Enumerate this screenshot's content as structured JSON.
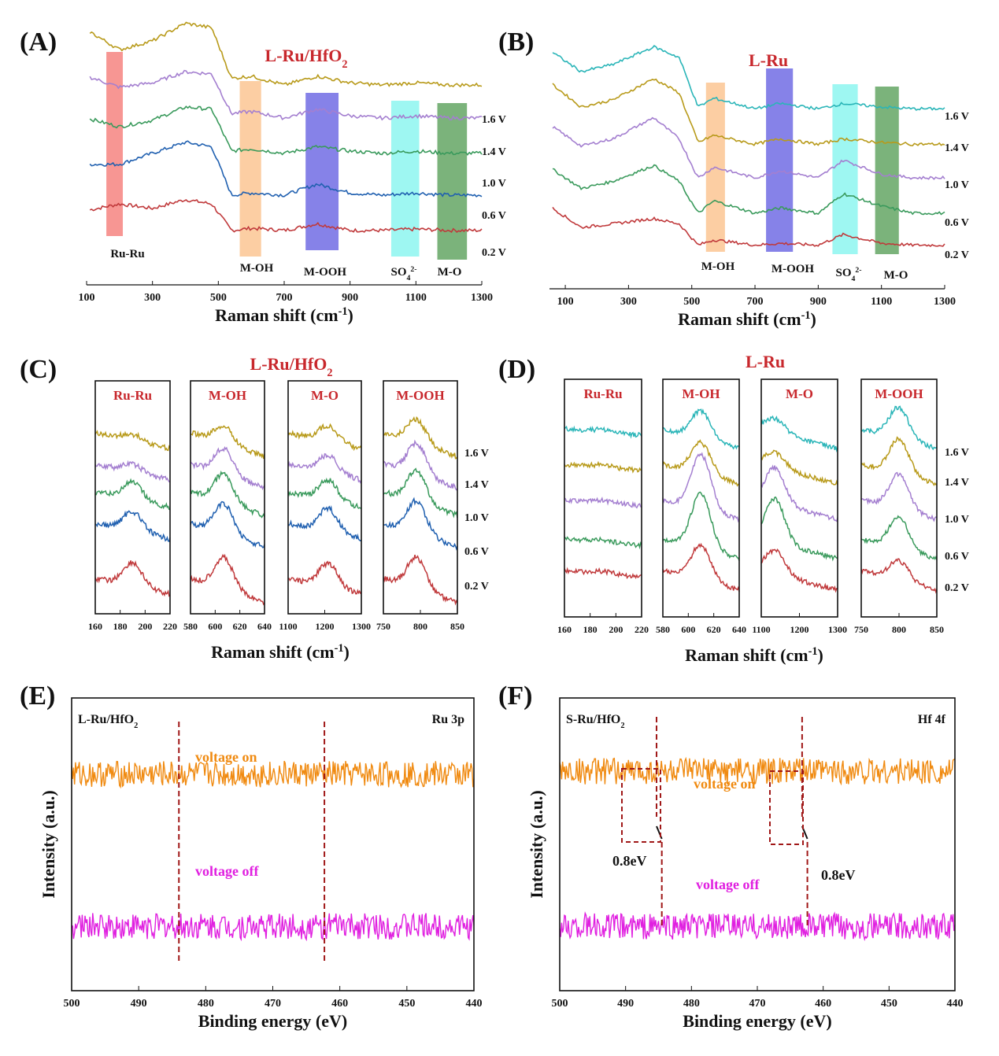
{
  "figure": {
    "colors": {
      "v0_2": "#c0393b",
      "v0_6": "#2060b0",
      "v1_0": "#3a9a5c",
      "v1_4": "#a47fd0",
      "v1_6": "#b89a1a",
      "v1_6_lru": "#2ab5b8",
      "label_red": "#c8282d",
      "xps_on": "#f08a10",
      "xps_off": "#e020e0",
      "dash_red": "#a01818"
    }
  },
  "chart_data": [
    {
      "panel": "(A)",
      "type": "line",
      "title": "L-Ru/HfO₂",
      "xlabel": "Raman shift (cm⁻¹)",
      "xlim": [
        100,
        1300
      ],
      "x_ticks": [
        "100",
        "300",
        "500",
        "700",
        "900",
        "1100",
        "1300"
      ],
      "series": [
        {
          "name": "0.2 V",
          "x": [
            100,
            200,
            300,
            400,
            480,
            540,
            600,
            700,
            800,
            900,
            1000,
            1100,
            1200,
            1300
          ],
          "y": [
            0.9,
            1.05,
            0.95,
            1.15,
            1.05,
            0.45,
            0.5,
            0.45,
            0.6,
            0.45,
            0.45,
            0.48,
            0.45,
            0.45
          ]
        },
        {
          "name": "0.6 V",
          "x": [
            100,
            200,
            300,
            400,
            480,
            540,
            600,
            700,
            800,
            900,
            1000,
            1100,
            1200,
            1300
          ],
          "y": [
            1.95,
            1.95,
            2.2,
            2.45,
            2.35,
            1.25,
            1.3,
            1.25,
            1.5,
            1.3,
            1.25,
            1.3,
            1.25,
            1.25
          ]
        },
        {
          "name": "1.0 V",
          "x": [
            100,
            200,
            300,
            400,
            480,
            540,
            600,
            700,
            800,
            900,
            1000,
            1100,
            1200,
            1300
          ],
          "y": [
            3.0,
            2.8,
            2.95,
            3.25,
            3.2,
            2.25,
            2.3,
            2.2,
            2.35,
            2.25,
            2.2,
            2.25,
            2.2,
            2.2
          ]
        },
        {
          "name": "1.4 V",
          "x": [
            100,
            200,
            300,
            400,
            480,
            540,
            600,
            700,
            800,
            900,
            1000,
            1100,
            1200,
            1300
          ],
          "y": [
            3.95,
            3.7,
            3.8,
            4.05,
            4.0,
            3.1,
            3.15,
            3.0,
            3.2,
            3.05,
            3.0,
            3.05,
            3.0,
            3.0
          ]
        },
        {
          "name": "1.6 V",
          "x": [
            100,
            200,
            300,
            400,
            480,
            540,
            600,
            700,
            800,
            900,
            1000,
            1100,
            1200,
            1300
          ],
          "y": [
            5.0,
            4.55,
            4.75,
            5.15,
            5.05,
            3.9,
            3.95,
            3.75,
            3.95,
            3.8,
            3.75,
            3.8,
            3.75,
            3.75
          ]
        }
      ],
      "bands": [
        {
          "label": "Ru-Ru",
          "x": [
            160,
            210
          ],
          "color": "#f4736f"
        },
        {
          "label": "M-OH",
          "x": [
            565,
            630
          ],
          "color": "#fbbd84"
        },
        {
          "label": "M-OOH",
          "x": [
            765,
            865
          ],
          "color": "#5e58e0"
        },
        {
          "label": "SO₄²⁻",
          "x": [
            1025,
            1110
          ],
          "color": "#7ef4ee"
        },
        {
          "label": "M-O",
          "x": [
            1165,
            1255
          ],
          "color": "#4f9a4f"
        }
      ]
    },
    {
      "panel": "(B)",
      "type": "line",
      "title": "L-Ru",
      "xlabel": "Raman shift (cm⁻¹)",
      "xlim": [
        50,
        1300
      ],
      "x_ticks": [
        "100",
        "300",
        "500",
        "700",
        "900",
        "1100",
        "1300"
      ],
      "series": [
        {
          "name": "0.2 V",
          "x": [
            50,
            150,
            250,
            380,
            460,
            520,
            570,
            700,
            780,
            900,
            980,
            1100,
            1200,
            1300
          ],
          "y": [
            1.4,
            0.8,
            0.9,
            1.05,
            0.9,
            0.3,
            0.45,
            0.3,
            0.35,
            0.3,
            0.6,
            0.35,
            0.3,
            0.3
          ]
        },
        {
          "name": "0.6 V",
          "x": [
            50,
            150,
            250,
            380,
            460,
            520,
            570,
            700,
            780,
            900,
            980,
            1100,
            1200,
            1300
          ],
          "y": [
            2.5,
            1.9,
            2.1,
            2.55,
            2.1,
            1.2,
            1.55,
            1.2,
            1.35,
            1.2,
            1.75,
            1.4,
            1.2,
            1.2
          ]
        },
        {
          "name": "1.0 V",
          "x": [
            50,
            150,
            250,
            380,
            460,
            520,
            570,
            700,
            780,
            900,
            980,
            1100,
            1200,
            1300
          ],
          "y": [
            3.7,
            3.1,
            3.3,
            3.9,
            3.3,
            2.2,
            2.5,
            2.2,
            2.4,
            2.2,
            2.7,
            2.3,
            2.2,
            2.2
          ]
        },
        {
          "name": "1.4 V",
          "x": [
            50,
            150,
            250,
            380,
            460,
            520,
            570,
            700,
            780,
            900,
            980,
            1100,
            1200,
            1300
          ],
          "y": [
            4.9,
            4.2,
            4.4,
            5.0,
            4.6,
            3.2,
            3.4,
            3.15,
            3.3,
            3.15,
            3.3,
            3.2,
            3.15,
            3.15
          ]
        },
        {
          "name": "1.6 V",
          "x": [
            50,
            150,
            250,
            380,
            460,
            520,
            570,
            700,
            780,
            900,
            980,
            1100,
            1200,
            1300
          ],
          "y": [
            5.8,
            5.2,
            5.4,
            5.9,
            5.6,
            4.2,
            4.45,
            4.15,
            4.3,
            4.15,
            4.3,
            4.2,
            4.15,
            4.15
          ]
        }
      ],
      "bands": [
        {
          "label": "M-OH",
          "x": [
            545,
            605
          ],
          "color": "#fbbd84"
        },
        {
          "label": "M-OOH",
          "x": [
            735,
            820
          ],
          "color": "#5e58e0"
        },
        {
          "label": "SO₄²⁻",
          "x": [
            945,
            1025
          ],
          "color": "#7ef4ee"
        },
        {
          "label": "M-O",
          "x": [
            1080,
            1155
          ],
          "color": "#4f9a4f"
        }
      ]
    },
    {
      "panel": "(C)",
      "type": "line",
      "title": "L-Ru/HfO₂",
      "xlabel": "Raman shift (cm⁻¹)",
      "subpanels": [
        {
          "label": "Ru-Ru",
          "ticks": [
            "160",
            "180",
            "200",
            "220"
          ],
          "xlim": [
            160,
            220
          ]
        },
        {
          "label": "M-OH",
          "ticks": [
            "580",
            "600",
            "620",
            "640"
          ],
          "xlim": [
            580,
            640
          ]
        },
        {
          "label": "M-O",
          "ticks": [
            "1100",
            "1200",
            "1300"
          ],
          "xlim": [
            1100,
            1300
          ]
        },
        {
          "label": "M-OOH",
          "ticks": [
            "750",
            "800",
            "850"
          ],
          "xlim": [
            750,
            850
          ]
        }
      ],
      "series": [
        "0.2 V",
        "0.6 V",
        "1.0 V",
        "1.4 V",
        "1.6 V"
      ]
    },
    {
      "panel": "(D)",
      "type": "line",
      "title": "L-Ru",
      "xlabel": "Raman shift (cm⁻¹)",
      "subpanels": [
        {
          "label": "Ru-Ru",
          "ticks": [
            "160",
            "180",
            "200",
            "220"
          ],
          "xlim": [
            160,
            220
          ]
        },
        {
          "label": "M-OH",
          "ticks": [
            "580",
            "600",
            "620",
            "640"
          ],
          "xlim": [
            580,
            640
          ]
        },
        {
          "label": "M-O",
          "ticks": [
            "1100",
            "1200",
            "1300"
          ],
          "xlim": [
            1100,
            1300
          ]
        },
        {
          "label": "M-OOH",
          "ticks": [
            "750",
            "800",
            "850"
          ],
          "xlim": [
            750,
            850
          ]
        }
      ],
      "series": [
        "0.2 V",
        "0.6 V",
        "1.0 V",
        "1.4 V",
        "1.6 V"
      ]
    },
    {
      "panel": "(E)",
      "type": "line",
      "sample": "L-Ru/HfO₂",
      "region": "Ru 3p",
      "xlabel": "Binding energy (eV)",
      "ylabel": "Intensity (a.u.)",
      "xlim": [
        500,
        440
      ],
      "x_ticks": [
        "500",
        "490",
        "480",
        "470",
        "460",
        "450",
        "440"
      ],
      "series": [
        {
          "name": "voltage on",
          "x": [
            500,
            490,
            484,
            480,
            470,
            465,
            462,
            458,
            450,
            440
          ],
          "y": [
            0.74,
            0.73,
            0.79,
            0.72,
            0.74,
            0.79,
            0.83,
            0.7,
            0.65,
            0.64
          ]
        },
        {
          "name": "voltage off",
          "x": [
            500,
            490,
            484,
            480,
            470,
            465,
            462,
            458,
            450,
            440
          ],
          "y": [
            0.22,
            0.24,
            0.32,
            0.23,
            0.27,
            0.34,
            0.4,
            0.18,
            0.14,
            0.13
          ]
        }
      ],
      "markers": [
        484,
        462.3
      ]
    },
    {
      "panel": "(F)",
      "type": "line",
      "sample": "S-Ru/HfO₂",
      "region": "Hf 4f",
      "xlabel": "Binding energy (eV)",
      "ylabel": "Intensity (a.u.)",
      "xlim": [
        500,
        440
      ],
      "x_ticks": [
        "500",
        "490",
        "480",
        "470",
        "460",
        "450",
        "440"
      ],
      "series": [
        {
          "name": "voltage on",
          "x": [
            500,
            490,
            486,
            484,
            480,
            470,
            465,
            463,
            460,
            450,
            440
          ],
          "y": [
            0.75,
            0.8,
            0.86,
            0.78,
            0.72,
            0.74,
            0.84,
            0.9,
            0.62,
            0.6,
            0.58
          ]
        },
        {
          "name": "voltage off",
          "x": [
            500,
            490,
            485,
            483,
            480,
            470,
            465,
            462,
            459,
            450,
            440
          ],
          "y": [
            0.22,
            0.27,
            0.42,
            0.3,
            0.28,
            0.3,
            0.42,
            0.52,
            0.18,
            0.14,
            0.12
          ]
        }
      ],
      "markers_on": [
        485.3,
        463.2
      ],
      "markers_off": [
        484.5,
        462.4
      ],
      "shift_label": "0.8eV"
    }
  ]
}
